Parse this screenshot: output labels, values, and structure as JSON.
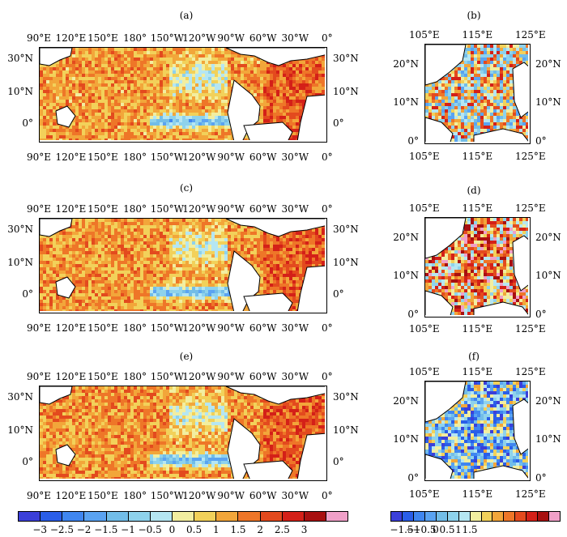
{
  "panels": {
    "a": {
      "label": "(a)"
    },
    "b": {
      "label": "(b)"
    },
    "c": {
      "label": "(c)"
    },
    "d": {
      "label": "(d)"
    },
    "e": {
      "label": "(e)"
    },
    "f": {
      "label": "(f)"
    }
  },
  "large_map_axes": {
    "lon_ticks": [
      "90°E",
      "120°E",
      "150°E",
      "180°",
      "150°W",
      "120°W",
      "90°W",
      "60°W",
      "30°W",
      "0°"
    ],
    "lat_ticks": [
      "30°N",
      "10°N",
      "0°"
    ]
  },
  "small_map_axes": {
    "lon_ticks": [
      "105°E",
      "115°E",
      "125°E"
    ],
    "lat_ticks": [
      "20°N",
      "10°N",
      "0°"
    ]
  },
  "colorbar_large": {
    "ticks": [
      "−3",
      "−2.5",
      "−2",
      "−1.5",
      "−1",
      "−0.5",
      "0",
      "0.5",
      "1",
      "1.5",
      "2",
      "2.5",
      "3"
    ],
    "colors": [
      "#3b3fd9",
      "#2a5ee8",
      "#3f86f0",
      "#5aa3f2",
      "#72bde8",
      "#8ed2ec",
      "#b5e6f2",
      "#f2eea0",
      "#f2d15a",
      "#f2a63a",
      "#ee7628",
      "#e34a1e",
      "#d42018",
      "#a81010",
      "#f0a0c8"
    ]
  },
  "colorbar_small": {
    "ticks": [
      "−1.5",
      "−1",
      "−0.5",
      "0",
      "0.5",
      "1",
      "1.5"
    ],
    "colors": [
      "#3b3fd9",
      "#2a5ee8",
      "#3f86f0",
      "#5aa3f2",
      "#72bde8",
      "#8ed2ec",
      "#b5e6f2",
      "#f2eea0",
      "#f2d15a",
      "#f2a63a",
      "#ee7628",
      "#e34a1e",
      "#d42018",
      "#a81010",
      "#f0a0c8"
    ]
  }
}
